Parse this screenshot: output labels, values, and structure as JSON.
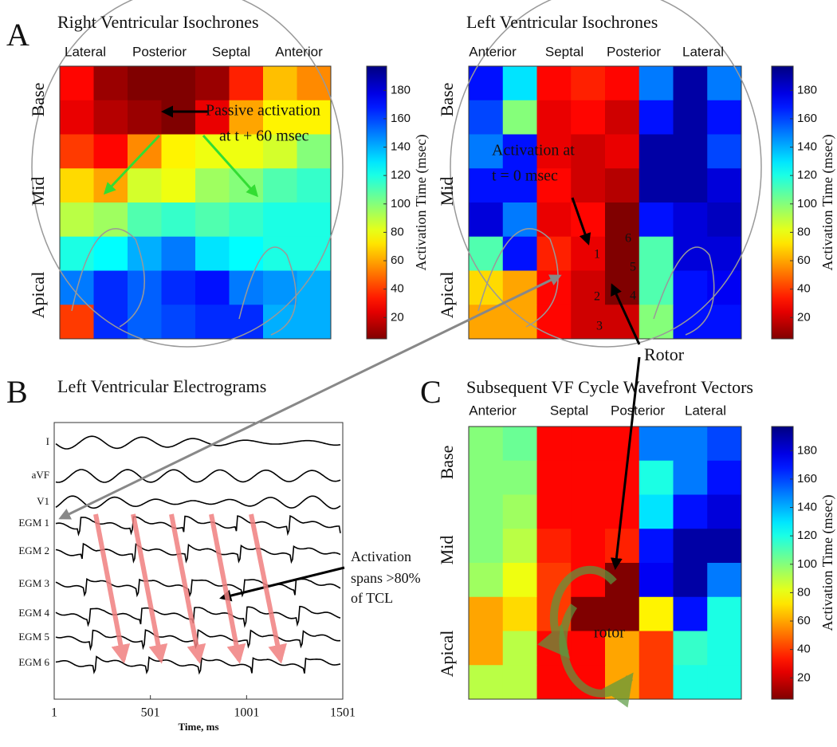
{
  "panels": [
    {
      "letter": "A",
      "maps": [
        {
          "title": "Right Ventricular Isochrones",
          "regions": [
            "Lateral",
            "Posterior",
            "Septal",
            "Anterior"
          ],
          "levels": [
            "Base",
            "Mid",
            "Apical"
          ],
          "grid": [
            [
              30,
              10,
              5,
              5,
              10,
              35,
              65,
              55
            ],
            [
              25,
              15,
              10,
              5,
              25,
              60,
              75,
              75
            ],
            [
              40,
              30,
              55,
              75,
              80,
              80,
              85,
              100
            ],
            [
              70,
              60,
              85,
              80,
              95,
              100,
              110,
              115
            ],
            [
              90,
              95,
              110,
              115,
              110,
              115,
              120,
              120
            ],
            [
              120,
              125,
              140,
              150,
              130,
              125,
              120,
              120
            ],
            [
              150,
              165,
              155,
              165,
              170,
              150,
              145,
              140
            ],
            [
              40,
              165,
              155,
              160,
              165,
              165,
              140,
              140
            ]
          ],
          "colorbar": {
            "label": "Activation Time (msec)",
            "lim": [
              5,
              197
            ],
            "ticks": [
              20,
              40,
              60,
              80,
              100,
              120,
              140,
              160,
              180
            ]
          },
          "annotations": [
            "Passive activation",
            "at t + 60 msec"
          ]
        },
        {
          "title": "Left Ventricular Isochrones",
          "regions": [
            "Anterior",
            "Septal",
            "Posterior",
            "Lateral"
          ],
          "levels": [
            "Base",
            "Mid",
            "Apical"
          ],
          "grid": [
            [
              170,
              130,
              30,
              35,
              30,
              150,
              190,
              150
            ],
            [
              160,
              100,
              25,
              30,
              20,
              170,
              190,
              170
            ],
            [
              150,
              170,
              25,
              20,
              25,
              190,
              190,
              160
            ],
            [
              170,
              170,
              30,
              20,
              15,
              190,
              190,
              180
            ],
            [
              180,
              150,
              25,
              30,
              5,
              170,
              180,
              185
            ],
            [
              110,
              170,
              35,
              25,
              5,
              110,
              180,
              180
            ],
            [
              70,
              60,
              30,
              20,
              5,
              110,
              170,
              175
            ],
            [
              60,
              60,
              30,
              20,
              20,
              100,
              170,
              170
            ]
          ],
          "colorbar": {
            "label": "Activation Time (msec)",
            "lim": [
              5,
              197
            ],
            "ticks": [
              20,
              40,
              60,
              80,
              100,
              120,
              140,
              160,
              180
            ]
          },
          "annotations": [
            "Activation at",
            "t = 0 msec",
            "1",
            "2",
            "3",
            "4",
            "5",
            "6",
            "Rotor"
          ]
        }
      ]
    },
    {
      "letter": "B",
      "title": "Left Ventricular Electrograms",
      "leads": [
        "I",
        "aVF",
        "V1",
        "EGM 1",
        "EGM 2",
        "EGM 3",
        "EGM 4",
        "EGM 5",
        "EGM 6"
      ],
      "x_label": "Time, ms",
      "xlim": [
        1,
        1501
      ],
      "xticks": [
        1,
        501,
        1001,
        1501
      ],
      "annotations": [
        "Activation",
        "spans >80%",
        "of TCL"
      ]
    },
    {
      "letter": "C",
      "map": {
        "title": "Subsequent VF Cycle Wavefront Vectors",
        "regions": [
          "Anterior",
          "Septal",
          "Posterior",
          "Lateral"
        ],
        "levels": [
          "Base",
          "Mid",
          "Apical"
        ],
        "grid": [
          [
            100,
            105,
            30,
            30,
            30,
            150,
            150,
            160
          ],
          [
            100,
            100,
            30,
            30,
            30,
            120,
            150,
            170
          ],
          [
            100,
            95,
            30,
            30,
            30,
            130,
            170,
            180
          ],
          [
            100,
            90,
            35,
            30,
            35,
            170,
            190,
            190
          ],
          [
            95,
            80,
            40,
            30,
            5,
            175,
            190,
            150
          ],
          [
            60,
            70,
            40,
            5,
            5,
            75,
            170,
            120
          ],
          [
            60,
            90,
            30,
            30,
            60,
            40,
            115,
            120
          ],
          [
            90,
            90,
            30,
            30,
            60,
            40,
            120,
            120
          ]
        ],
        "colorbar": {
          "label": "Activation Time (msec)",
          "lim": [
            5,
            197
          ],
          "ticks": [
            20,
            40,
            60,
            80,
            100,
            120,
            140,
            160,
            180
          ]
        },
        "annotations": [
          "rotor"
        ]
      }
    }
  ]
}
